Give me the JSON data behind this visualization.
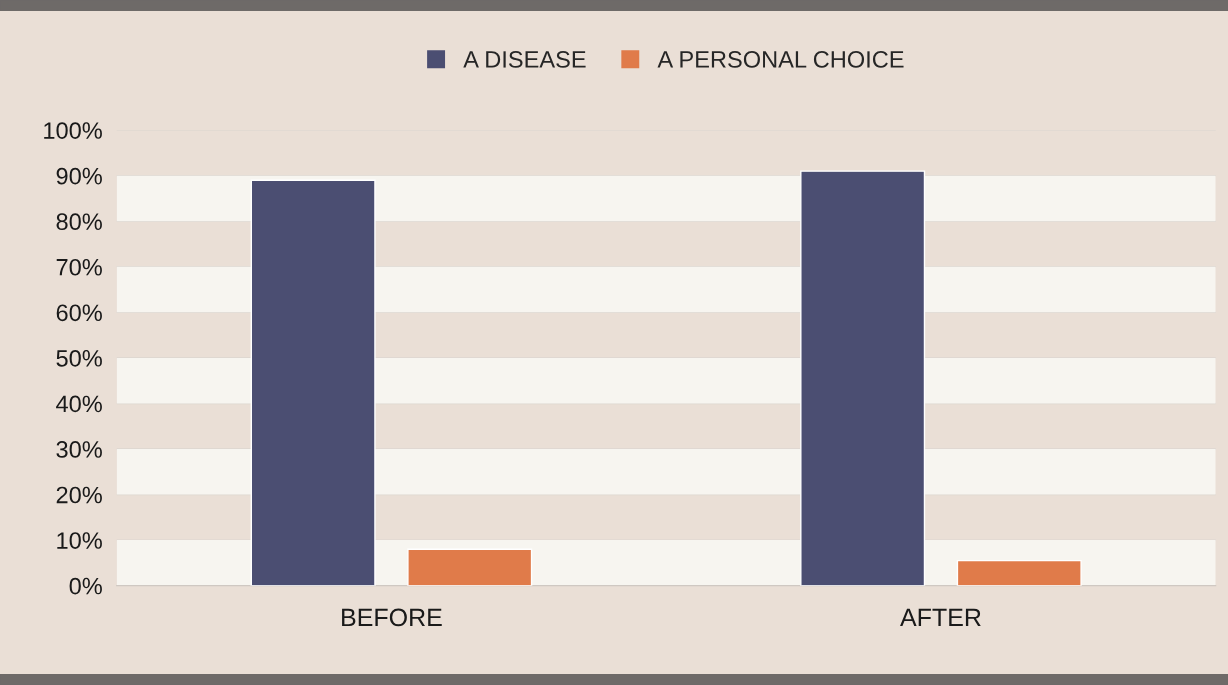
{
  "chart_data": {
    "type": "bar",
    "categories": [
      "BEFORE",
      "AFTER"
    ],
    "series": [
      {
        "name": "A DISEASE",
        "color": "#4b4e72",
        "values": [
          89,
          91
        ]
      },
      {
        "name": "A PERSONAL CHOICE",
        "color": "#e07b4a",
        "values": [
          8,
          5.5
        ]
      }
    ],
    "ylim": [
      0,
      100
    ],
    "yticks": [
      {
        "value": 0,
        "label": "0%"
      },
      {
        "value": 10,
        "label": "10%"
      },
      {
        "value": 20,
        "label": "20%"
      },
      {
        "value": 30,
        "label": "30%"
      },
      {
        "value": 40,
        "label": "40%"
      },
      {
        "value": 50,
        "label": "50%"
      },
      {
        "value": 60,
        "label": "60%"
      },
      {
        "value": 70,
        "label": "70%"
      },
      {
        "value": 80,
        "label": "80%"
      },
      {
        "value": 90,
        "label": "90%"
      },
      {
        "value": 100,
        "label": "100%"
      }
    ],
    "bands": [
      {
        "axis": "y",
        "from": 0,
        "to": 10,
        "color": "#f7f5f0"
      },
      {
        "axis": "y",
        "from": 20,
        "to": 30,
        "color": "#f7f5f0"
      },
      {
        "axis": "y",
        "from": 40,
        "to": 50,
        "color": "#f7f5f0"
      },
      {
        "axis": "y",
        "from": 60,
        "to": 70,
        "color": "#f7f5f0"
      },
      {
        "axis": "y",
        "from": 80,
        "to": 90,
        "color": "#f7f5f0"
      }
    ],
    "grid": "y",
    "legend": "top"
  }
}
